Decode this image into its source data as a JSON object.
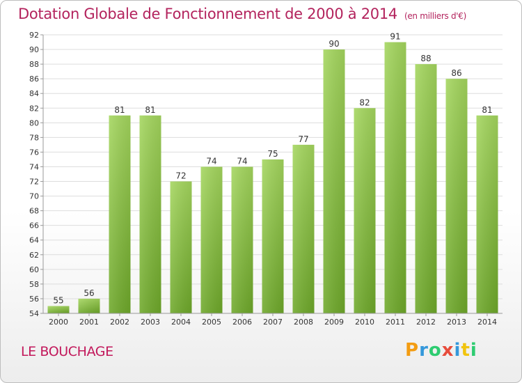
{
  "title": "Dotation Globale de Fonctionnement de 2000 à 2014",
  "subtitle": "(en milliers d'€)",
  "place": "LE BOUCHAGE",
  "logo": {
    "letters": [
      "P",
      "r",
      "o",
      "x",
      "i",
      "t",
      "i"
    ],
    "colors": [
      "#f39c12",
      "#3498db",
      "#2ecc71",
      "#e74c3c",
      "#3498db",
      "#f1c40f",
      "#2ecc71"
    ]
  },
  "colors": {
    "bar_top": "#a4d65e",
    "bar_bottom": "#6ea82a",
    "title": "#b3235d"
  },
  "chart_data": {
    "type": "bar",
    "title": "Dotation Globale de Fonctionnement de 2000 à 2014",
    "subtitle": "(en milliers d'€)",
    "categories": [
      "2000",
      "2001",
      "2002",
      "2003",
      "2004",
      "2005",
      "2006",
      "2007",
      "2008",
      "2009",
      "2010",
      "2011",
      "2012",
      "2013",
      "2014"
    ],
    "values": [
      55,
      56,
      81,
      81,
      72,
      74,
      74,
      75,
      77,
      90,
      82,
      91,
      88,
      86,
      81
    ],
    "ylim": [
      54,
      92
    ],
    "yticks": [
      54,
      56,
      58,
      60,
      62,
      64,
      66,
      68,
      70,
      72,
      74,
      76,
      78,
      80,
      82,
      84,
      86,
      88,
      90,
      92
    ],
    "grid": true,
    "legend": "none"
  }
}
